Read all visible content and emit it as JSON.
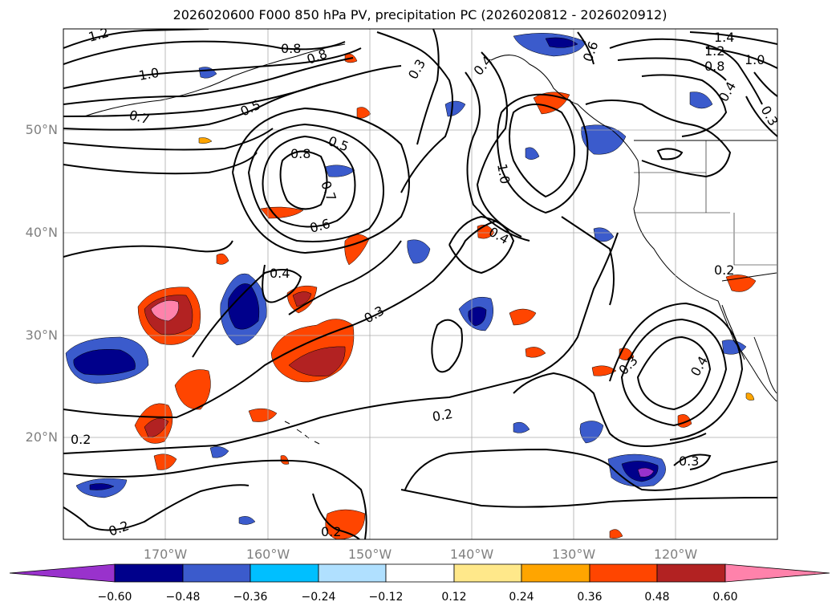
{
  "title": "2026020600 F000 850 hPa PV, precipitation PC (2026020812 - 2026020912)",
  "longitude_labels": [
    "170°W",
    "160°W",
    "150°W",
    "140°W",
    "130°W",
    "120°W"
  ],
  "latitude_labels": [
    "50°N",
    "40°N",
    "30°N",
    "20°N"
  ],
  "colorbar": {
    "ticks": [
      "−0.60",
      "−0.48",
      "−0.36",
      "−0.24",
      "−0.12",
      "0.12",
      "0.24",
      "0.36",
      "0.48",
      "0.60"
    ],
    "colors": [
      "#9932cc",
      "#00008b",
      "#3b5bcc",
      "#00bfff",
      "#b0e0ff",
      "#ffffff",
      "#ffe88a",
      "#ffa500",
      "#ff4500",
      "#b22222",
      "#ff82ab"
    ]
  },
  "contour_labels": [
    "1.2",
    "0.8",
    "0.8",
    "1.0",
    "0.7",
    "0.5",
    "0.8",
    "0.5",
    "0.7",
    "0.6",
    "0.4",
    "0.3",
    "0.3",
    "0.4",
    "0.6",
    "1.4",
    "1.2",
    "1.0",
    "0.8",
    "0.4",
    "0.3",
    "1.0",
    "0.4",
    "0.2",
    "0.3",
    "0.4",
    "0.2",
    "0.2",
    "0.2",
    "0.3",
    "0.2"
  ]
}
